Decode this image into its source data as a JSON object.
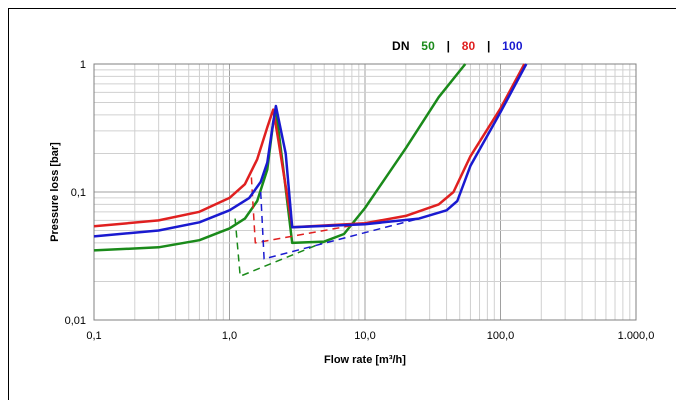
{
  "chart_data": {
    "type": "line",
    "xscale": "log",
    "yscale": "log",
    "xlim": [
      0.1,
      1000
    ],
    "ylim": [
      0.01,
      1
    ],
    "xlabel": "Flow rate [m³/h]",
    "ylabel": "Pressure loss [bar]",
    "xticks": [
      {
        "v": 0.1,
        "label": "0,1"
      },
      {
        "v": 1,
        "label": "1,0"
      },
      {
        "v": 10,
        "label": "10,0"
      },
      {
        "v": 100,
        "label": "100,0"
      },
      {
        "v": 1000,
        "label": "1.000,0"
      }
    ],
    "yticks": [
      {
        "v": 0.01,
        "label": "0,01"
      },
      {
        "v": 0.1,
        "label": "0,1"
      },
      {
        "v": 1,
        "label": "1"
      }
    ],
    "grid": true,
    "legend": {
      "position": "top-right",
      "title": "DN",
      "separator": "|",
      "entries": [
        {
          "label": "50",
          "color": "#1a8a1a"
        },
        {
          "label": "80",
          "color": "#e02020"
        },
        {
          "label": "100",
          "color": "#1a1ad0"
        }
      ]
    },
    "series": [
      {
        "color": "#1a8a1a",
        "style": "solid",
        "points": [
          [
            0.1,
            0.035
          ],
          [
            0.3,
            0.037
          ],
          [
            0.6,
            0.042
          ],
          [
            1.0,
            0.052
          ],
          [
            1.3,
            0.062
          ],
          [
            1.6,
            0.085
          ],
          [
            1.9,
            0.15
          ],
          [
            2.1,
            0.35
          ],
          [
            2.2,
            0.44
          ],
          [
            2.5,
            0.15
          ],
          [
            2.9,
            0.04
          ],
          [
            5,
            0.041
          ],
          [
            7,
            0.047
          ],
          [
            10,
            0.075
          ],
          [
            20,
            0.22
          ],
          [
            35,
            0.55
          ],
          [
            55,
            1.0
          ]
        ]
      },
      {
        "color": "#1a8a1a",
        "style": "dashed",
        "points": [
          [
            1.1,
            0.062
          ],
          [
            1.2,
            0.022
          ],
          [
            7,
            0.047
          ]
        ]
      },
      {
        "color": "#e02020",
        "style": "solid",
        "points": [
          [
            0.1,
            0.054
          ],
          [
            0.3,
            0.06
          ],
          [
            0.6,
            0.07
          ],
          [
            1.0,
            0.09
          ],
          [
            1.3,
            0.115
          ],
          [
            1.6,
            0.18
          ],
          [
            1.9,
            0.32
          ],
          [
            2.1,
            0.44
          ],
          [
            2.3,
            0.25
          ],
          [
            2.9,
            0.053
          ],
          [
            10,
            0.057
          ],
          [
            20,
            0.065
          ],
          [
            35,
            0.08
          ],
          [
            45,
            0.1
          ],
          [
            60,
            0.19
          ],
          [
            100,
            0.45
          ],
          [
            150,
            1.0
          ]
        ]
      },
      {
        "color": "#e02020",
        "style": "dashed",
        "points": [
          [
            1.45,
            0.13
          ],
          [
            1.55,
            0.04
          ],
          [
            10,
            0.057
          ]
        ]
      },
      {
        "color": "#1a1ad0",
        "style": "solid",
        "points": [
          [
            0.1,
            0.045
          ],
          [
            0.3,
            0.05
          ],
          [
            0.6,
            0.058
          ],
          [
            1.0,
            0.072
          ],
          [
            1.4,
            0.09
          ],
          [
            1.7,
            0.12
          ],
          [
            1.9,
            0.17
          ],
          [
            2.1,
            0.35
          ],
          [
            2.2,
            0.47
          ],
          [
            2.6,
            0.2
          ],
          [
            2.9,
            0.053
          ],
          [
            10,
            0.056
          ],
          [
            25,
            0.062
          ],
          [
            40,
            0.072
          ],
          [
            48,
            0.085
          ],
          [
            60,
            0.16
          ],
          [
            100,
            0.42
          ],
          [
            155,
            1.0
          ]
        ]
      },
      {
        "color": "#1a1ad0",
        "style": "dashed",
        "points": [
          [
            1.7,
            0.1
          ],
          [
            1.8,
            0.03
          ],
          [
            25,
            0.062
          ]
        ]
      }
    ]
  }
}
